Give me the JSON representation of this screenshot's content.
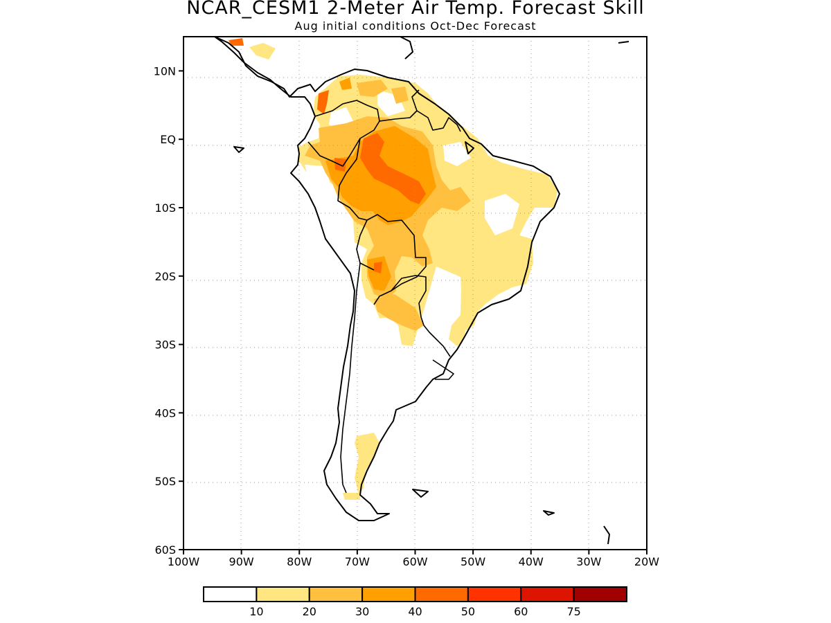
{
  "title": "NCAR_CESM1 2-Meter Air Temp. Forecast Skill",
  "subtitle": "Aug initial conditions  Oct-Dec Forecast",
  "map": {
    "lon_range": [
      -100,
      -20
    ],
    "lat_range": [
      -60,
      15
    ],
    "lat_ticks": [
      {
        "value": 10,
        "label": "10N"
      },
      {
        "value": 0,
        "label": "EQ"
      },
      {
        "value": -10,
        "label": "10S"
      },
      {
        "value": -20,
        "label": "20S"
      },
      {
        "value": -30,
        "label": "30S"
      },
      {
        "value": -40,
        "label": "40S"
      },
      {
        "value": -50,
        "label": "50S"
      },
      {
        "value": -60,
        "label": "60S"
      }
    ],
    "lon_ticks": [
      {
        "value": -100,
        "label": "100W"
      },
      {
        "value": -90,
        "label": "90W"
      },
      {
        "value": -80,
        "label": "80W"
      },
      {
        "value": -70,
        "label": "70W"
      },
      {
        "value": -60,
        "label": "60W"
      },
      {
        "value": -50,
        "label": "50W"
      },
      {
        "value": -40,
        "label": "40W"
      },
      {
        "value": -30,
        "label": "30W"
      },
      {
        "value": -20,
        "label": "20W"
      }
    ]
  },
  "colorbar": {
    "colors": [
      "#ffffff",
      "#ffe680",
      "#ffc040",
      "#ffa000",
      "#ff6a00",
      "#ff3200",
      "#dc1400",
      "#a00000"
    ],
    "labels": [
      "10",
      "20",
      "30",
      "40",
      "50",
      "60",
      "75"
    ]
  }
}
